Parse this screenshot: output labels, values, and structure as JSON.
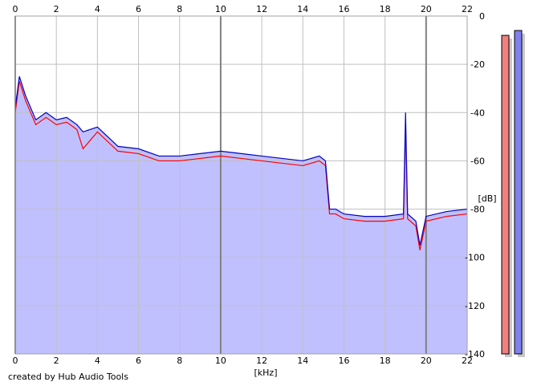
{
  "footer": {
    "credit": "created by Hub Audio Tools"
  },
  "colors": {
    "background": "#ffffff",
    "plot_fill": "#c0c0ff",
    "grid_minor": "#c0c0c0",
    "grid_major": "#808080",
    "left_channel": "#ff0000",
    "right_channel": "#0000c8",
    "meter_left": "#f08080",
    "meter_right": "#8080f0",
    "meter_shadow": "#c8c8c8"
  },
  "chart_data": {
    "type": "line",
    "title": "",
    "xlabel": "[kHz]",
    "ylabel": "[dB]",
    "xlim": [
      0,
      22
    ],
    "ylim": [
      -140,
      0
    ],
    "x_ticks": [
      "0",
      "2",
      "4",
      "6",
      "8",
      "10",
      "12",
      "14",
      "16",
      "18",
      "20",
      "22"
    ],
    "y_ticks": [
      "0",
      "-20",
      "-40",
      "-60",
      "-80",
      "-100",
      "-120",
      "-140"
    ],
    "grid": true,
    "legend": "none",
    "series": [
      {
        "color": "#0000c8",
        "x": [
          0,
          0.2,
          0.5,
          1,
          1.5,
          2,
          2.5,
          3,
          3.3,
          4,
          5,
          6,
          7,
          8,
          9,
          10,
          11,
          12,
          13,
          14,
          14.8,
          15.1,
          15.3,
          15.6,
          16,
          17,
          18,
          18.9,
          19.0,
          19.1,
          19.5,
          19.7,
          20,
          21,
          22
        ],
        "values": [
          -38,
          -25,
          -33,
          -43,
          -40,
          -43,
          -42,
          -45,
          -48,
          -46,
          -54,
          -55,
          -58,
          -58,
          -57,
          -56,
          -57,
          -58,
          -59,
          -60,
          -58,
          -60,
          -80,
          -80,
          -82,
          -83,
          -83,
          -82,
          -40,
          -82,
          -85,
          -95,
          -83,
          -81,
          -80
        ]
      },
      {
        "color": "#ff0000",
        "x": [
          0,
          0.2,
          0.5,
          1,
          1.5,
          2,
          2.5,
          3,
          3.3,
          4,
          5,
          6,
          7,
          8,
          9,
          10,
          11,
          12,
          13,
          14,
          14.8,
          15.1,
          15.3,
          15.6,
          16,
          17,
          18,
          18.9,
          19.0,
          19.1,
          19.5,
          19.7,
          20,
          21,
          22
        ],
        "values": [
          -40,
          -27,
          -35,
          -45,
          -42,
          -45,
          -44,
          -47,
          -55,
          -48,
          -56,
          -57,
          -60,
          -60,
          -59,
          -58,
          -59,
          -60,
          -61,
          -62,
          -60,
          -62,
          -82,
          -82,
          -84,
          -85,
          -85,
          -84,
          -45,
          -84,
          -87,
          -97,
          -85,
          -83,
          -82
        ]
      }
    ],
    "meters": [
      {
        "color": "#f08080",
        "level_db": -8
      },
      {
        "color": "#8080f0",
        "level_db": -6
      }
    ]
  }
}
